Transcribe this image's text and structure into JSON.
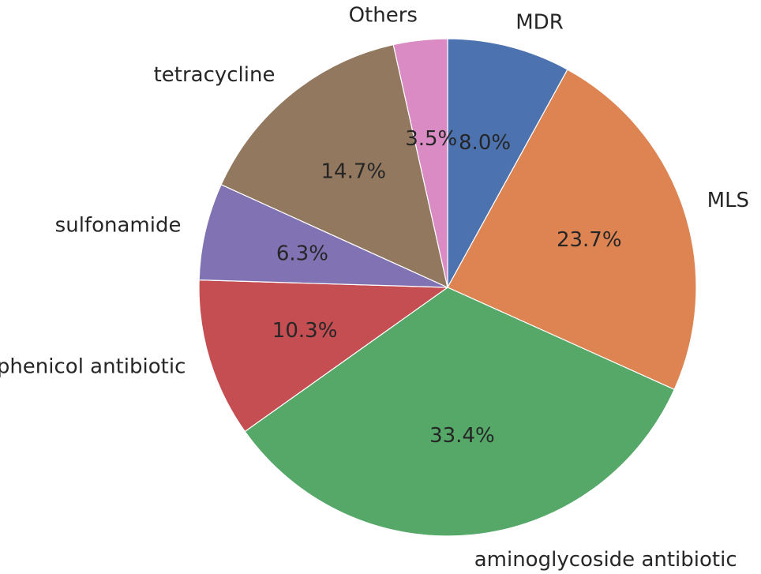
{
  "chart_data": {
    "type": "pie",
    "title": "",
    "start_angle_deg": 90,
    "direction": "clockwise",
    "slices": [
      {
        "label": "MDR",
        "value": 8.0,
        "pct_label": "8.0%",
        "color": "#4c72b0"
      },
      {
        "label": "MLS",
        "value": 23.7,
        "pct_label": "23.7%",
        "color": "#dd8452"
      },
      {
        "label": "aminoglycoside antibiotic",
        "value": 33.4,
        "pct_label": "33.4%",
        "color": "#55a868"
      },
      {
        "label": "phenicol antibiotic",
        "value": 10.3,
        "pct_label": "10.3%",
        "color": "#c44e52"
      },
      {
        "label": "sulfonamide",
        "value": 6.3,
        "pct_label": "6.3%",
        "color": "#8172b3"
      },
      {
        "label": "tetracycline",
        "value": 14.7,
        "pct_label": "14.7%",
        "color": "#937860"
      },
      {
        "label": "Others",
        "value": 3.5,
        "pct_label": "3.5%",
        "color": "#da8bc3"
      }
    ]
  }
}
